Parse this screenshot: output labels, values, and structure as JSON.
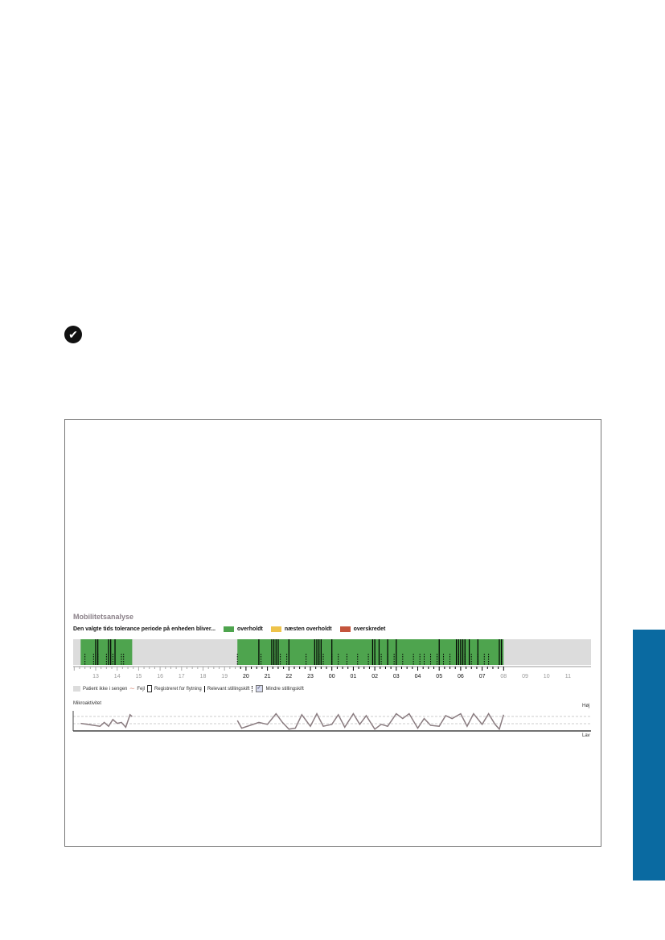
{
  "status_icon": "checkmark-circle-icon",
  "colors": {
    "overholdt": "#4ea44e",
    "naesten_overholdt": "#eec34a",
    "overskredet": "#c4553c",
    "not_in_bed": "#dcdcdc",
    "tab": "#0a6aa1",
    "micro_line": "#8a7c80"
  },
  "figure": {
    "title": "Mobilitetsanalyse",
    "legend_intro": "Den valgte tids tolerance periode på enheden bliver...",
    "legend": [
      {
        "label": "overholdt",
        "color": "#4ea44e"
      },
      {
        "label": "næsten overholdt",
        "color": "#eec34a"
      },
      {
        "label": "overskredet",
        "color": "#c4553c"
      }
    ],
    "bottom_legend": [
      "Patient ikke i sengen",
      "Fejl",
      "Registreret for flytning",
      "Relevant stillingskift",
      "Mindre stillingskift"
    ],
    "micro_title": "Mikroaktivitet",
    "micro_high": "Høj",
    "micro_low": "Lav"
  },
  "chart_data": {
    "type": "timeline",
    "hour_labels": [
      "13",
      "14",
      "15",
      "16",
      "17",
      "18",
      "19",
      "20",
      "21",
      "22",
      "23",
      "00",
      "01",
      "02",
      "03",
      "04",
      "05",
      "06",
      "07",
      "08",
      "09",
      "10",
      "11"
    ],
    "in_bed_periods": [
      [
        12.3,
        14.7
      ],
      [
        19.6,
        32.0
      ]
    ],
    "relevant_shifts": [
      13.0,
      13.1,
      13.6,
      13.7,
      13.9,
      20.6,
      21.2,
      21.3,
      21.4,
      21.5,
      22.0,
      23.2,
      23.3,
      23.4,
      23.5,
      24.0,
      25.9,
      26.0,
      26.2,
      26.6,
      27.0,
      29.0,
      29.8,
      29.9,
      30.0,
      30.1,
      30.2,
      30.4,
      30.8,
      31.8,
      31.9
    ],
    "minor_shifts": [
      12.5,
      12.9,
      13.1,
      13.5,
      13.8,
      14.2,
      14.3,
      19.6,
      20.7,
      21.3,
      21.6,
      21.9,
      22.8,
      23.4,
      23.6,
      24.0,
      24.3,
      24.7,
      25.2,
      25.7,
      26.0,
      26.3,
      26.6,
      26.9,
      27.3,
      27.8,
      28.1,
      28.3,
      28.6,
      28.9,
      29.2,
      29.5,
      29.9,
      30.2,
      30.5,
      30.8,
      31.1,
      31.3,
      31.9
    ],
    "micro_activity": [
      {
        "x": [
          12.3,
          12.6,
          12.9,
          13.2,
          13.4,
          13.6,
          13.8,
          14.0,
          14.2,
          14.4,
          14.6,
          14.7
        ],
        "y": [
          0.35,
          0.3,
          0.25,
          0.2,
          0.4,
          0.2,
          0.55,
          0.35,
          0.4,
          0.15,
          0.8,
          0.7
        ]
      },
      {
        "x": [
          19.6,
          19.8,
          20.2,
          20.6,
          21.0,
          21.4,
          21.7,
          22.0,
          22.3,
          22.6,
          23.0,
          23.3,
          23.6,
          24.0,
          24.3,
          24.6,
          25.0,
          25.3,
          25.6,
          26.0,
          26.3,
          26.6,
          27.0,
          27.3,
          27.6,
          28.0,
          28.3,
          28.6,
          29.0,
          29.3,
          29.6,
          30.0,
          30.3,
          30.6,
          31.0,
          31.3,
          31.6,
          31.8,
          32.0
        ],
        "y": [
          0.5,
          0.1,
          0.25,
          0.4,
          0.3,
          0.85,
          0.4,
          0.05,
          0.1,
          0.8,
          0.2,
          0.85,
          0.2,
          0.3,
          0.8,
          0.15,
          0.85,
          0.3,
          0.75,
          0.05,
          0.3,
          0.2,
          0.85,
          0.6,
          0.85,
          0.1,
          0.6,
          0.25,
          0.2,
          0.75,
          0.6,
          0.85,
          0.2,
          0.85,
          0.3,
          0.85,
          0.3,
          0.05,
          0.8
        ]
      }
    ]
  }
}
